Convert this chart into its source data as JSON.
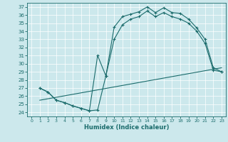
{
  "xlabel": "Humidex (Indice chaleur)",
  "bg_color": "#cce8ec",
  "line_color": "#1a6b6b",
  "xlim": [
    -0.5,
    23.5
  ],
  "ylim": [
    23.5,
    37.5
  ],
  "xticks": [
    0,
    1,
    2,
    3,
    4,
    5,
    6,
    7,
    8,
    9,
    10,
    11,
    12,
    13,
    14,
    15,
    16,
    17,
    18,
    19,
    20,
    21,
    22,
    23
  ],
  "yticks": [
    24,
    25,
    26,
    27,
    28,
    29,
    30,
    31,
    32,
    33,
    34,
    35,
    36,
    37
  ],
  "line1_x": [
    1,
    2,
    3,
    4,
    5,
    6,
    7,
    8,
    9,
    10,
    11,
    12,
    13,
    14,
    15,
    16,
    17,
    18,
    19,
    20,
    21,
    22,
    23
  ],
  "line1_y": [
    27,
    26.5,
    25.5,
    25.2,
    24.8,
    24.5,
    24.2,
    24.3,
    28.5,
    34.5,
    35.8,
    36.1,
    36.4,
    37.0,
    36.3,
    36.9,
    36.3,
    36.2,
    35.5,
    34.4,
    33.0,
    29.5,
    29.0
  ],
  "line2_x": [
    1,
    2,
    3,
    4,
    5,
    6,
    7,
    8,
    9,
    10,
    11,
    12,
    13,
    14,
    15,
    16,
    17,
    18,
    19,
    20,
    21,
    22,
    23
  ],
  "line2_y": [
    27,
    26.5,
    25.5,
    25.2,
    24.8,
    24.5,
    24.2,
    31.0,
    28.5,
    33.0,
    34.8,
    35.5,
    35.8,
    36.5,
    35.8,
    36.3,
    35.8,
    35.5,
    35.0,
    34.0,
    32.5,
    29.2,
    29.0
  ],
  "line3_x": [
    1,
    23
  ],
  "line3_y": [
    25.5,
    29.5
  ]
}
